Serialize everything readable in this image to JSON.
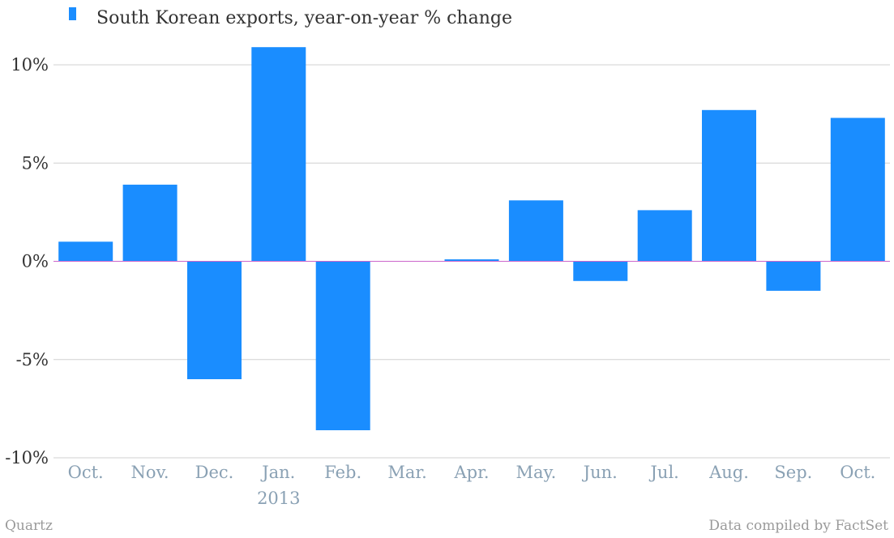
{
  "chart_data": {
    "type": "bar",
    "categories": [
      "Oct.",
      "Nov.",
      "Dec.",
      "Jan.",
      "Feb.",
      "Mar.",
      "Apr.",
      "May.",
      "Jun.",
      "Jul.",
      "Aug.",
      "Sep.",
      "Oct."
    ],
    "category_sublabels": [
      "",
      "",
      "",
      "2013",
      "",
      "",
      "",
      "",
      "",
      "",
      "",
      "",
      ""
    ],
    "series": [
      {
        "name": "South Korean exports, year-on-year % change",
        "color": "#1a8dff",
        "values": [
          1.0,
          3.9,
          -6.0,
          10.9,
          -8.6,
          0.0,
          0.1,
          3.1,
          -1.0,
          2.6,
          7.7,
          -1.5,
          7.3
        ]
      }
    ],
    "title": "",
    "xlabel": "",
    "ylabel": "",
    "ylim": [
      -10,
      10.9
    ],
    "yticks": [
      10,
      5,
      0,
      -5,
      -10
    ],
    "ytick_labels": [
      "10%",
      "5%",
      "0%",
      "-5%",
      "-10%"
    ],
    "grid": true,
    "zero_line_color": "#cc66cc",
    "legend_position": "top-left"
  },
  "footer": {
    "left": "Quartz",
    "right": "Data compiled by FactSet"
  }
}
